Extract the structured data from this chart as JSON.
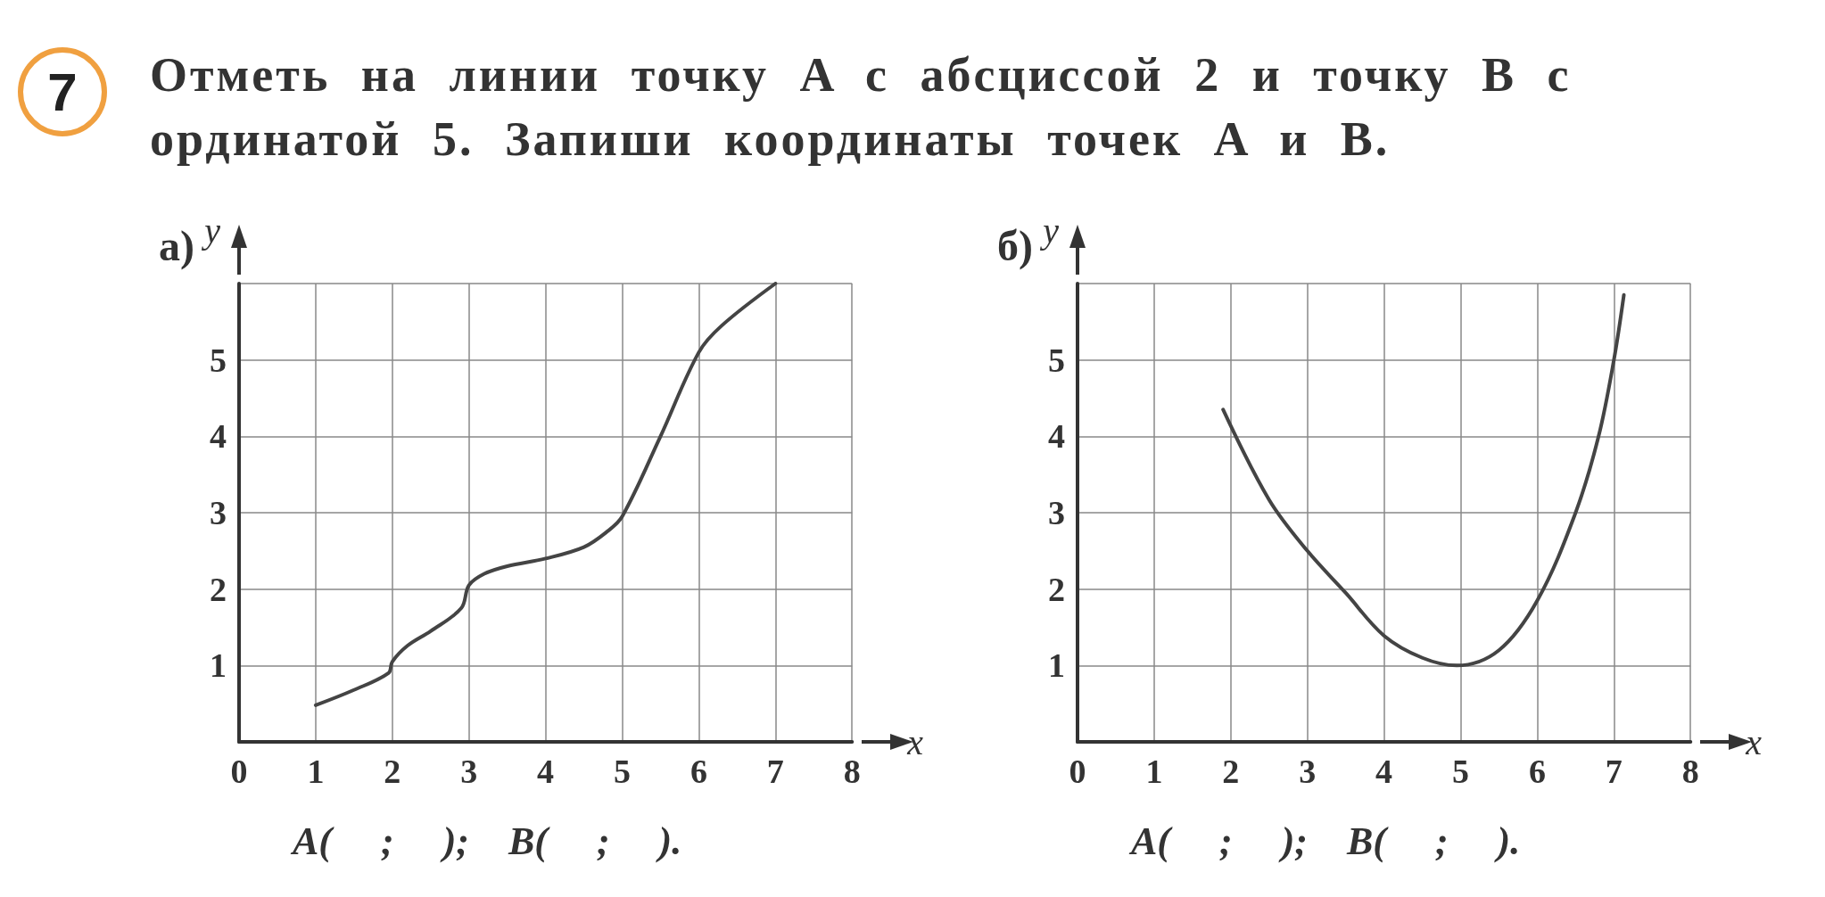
{
  "chart_data": [
    {
      "type": "line",
      "title": "Отметь на линии точку A с абсциссой 2 и точку B с ординатой 5. Запиши координаты точек A и B.",
      "xlabel": "x",
      "ylabel": "y",
      "annotations": [
        "а)",
        "A(     ;     );    B(     ;     ).",
        "7"
      ],
      "xlim": [
        0,
        8
      ],
      "xticks": [
        0,
        1,
        2,
        3,
        4,
        5,
        6,
        7,
        8
      ],
      "ylim": [
        0,
        6
      ],
      "yticks": [
        1,
        2,
        3,
        4,
        5,
        {
          "value": 6,
          "label": null
        }
      ],
      "grid": true,
      "marker": "none",
      "line_style": "solid",
      "series": [
        {
          "color": "#444444",
          "x": [
            1,
            1.5,
            1.95,
            2,
            2.2,
            2.5,
            2.9,
            3,
            3.2,
            3.5,
            4,
            4.5,
            4.8,
            5,
            5.5,
            6,
            6.3,
            7
          ],
          "values": [
            0.48,
            0.68,
            0.9,
            1.05,
            1.26,
            1.45,
            1.75,
            2.05,
            2.2,
            2.3,
            2.4,
            2.55,
            2.75,
            2.95,
            4,
            5.1,
            5.45,
            6
          ]
        }
      ]
    },
    {
      "type": "line",
      "xlabel": "x",
      "ylabel": "y",
      "annotations": [
        "б)",
        "A(     ;     );    B(     ;     )."
      ],
      "xlim": [
        0,
        8
      ],
      "xticks": [
        0,
        1,
        2,
        3,
        4,
        5,
        6,
        7,
        8
      ],
      "ylim": [
        0,
        6
      ],
      "yticks": [
        1,
        2,
        3,
        4,
        5,
        {
          "value": 6,
          "label": null
        }
      ],
      "grid": true,
      "marker": "none",
      "line_style": "solid",
      "series": [
        {
          "color": "#444444",
          "x": [
            1.9,
            2.5,
            3,
            3.5,
            4,
            4.5,
            4.95,
            5.5,
            6,
            6.5,
            6.8,
            7,
            7.13
          ],
          "values": [
            4.35,
            3.17,
            2.5,
            1.95,
            1.39,
            1.1,
            1.0,
            1.2,
            1.85,
            3,
            4,
            5,
            5.85
          ]
        }
      ]
    }
  ]
}
